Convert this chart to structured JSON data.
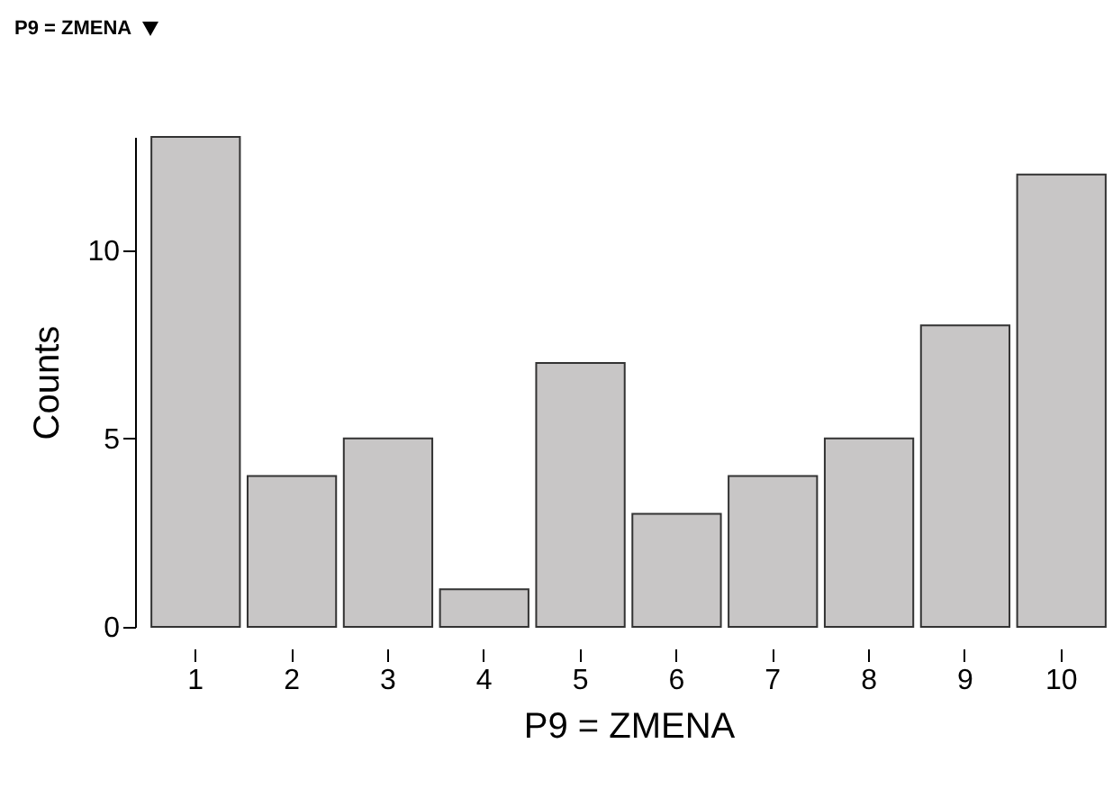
{
  "chart_data": {
    "type": "bar",
    "title": "P9 = ZMENA",
    "xlabel": "P9 = ZMENA",
    "ylabel": "Counts",
    "categories": [
      "1",
      "2",
      "3",
      "4",
      "5",
      "6",
      "7",
      "8",
      "9",
      "10"
    ],
    "values": [
      13,
      4,
      5,
      1,
      7,
      3,
      4,
      5,
      8,
      12
    ],
    "color": "#c8c6c6",
    "ylim": [
      0,
      13
    ],
    "yticks": [
      0,
      5,
      10
    ],
    "grid": false
  }
}
